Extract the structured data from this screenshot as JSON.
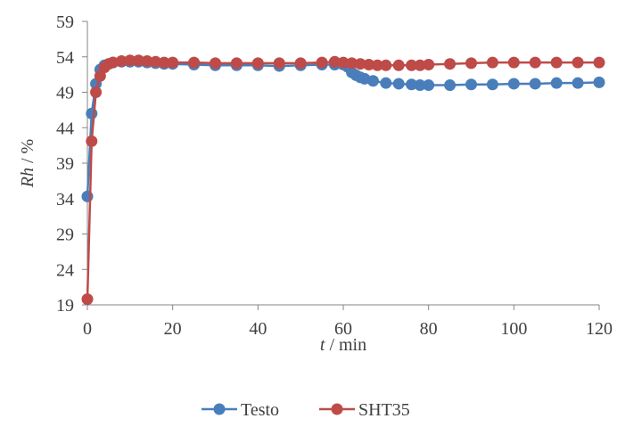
{
  "chart_data": {
    "type": "line",
    "title": "",
    "xlabel": {
      "italic": "t",
      "rest": " / min"
    },
    "ylabel": {
      "italic": "Rh",
      "rest": " / %"
    },
    "xlim": [
      0,
      120
    ],
    "ylim": [
      19,
      59
    ],
    "xticks": [
      "0",
      "20",
      "40",
      "60",
      "80",
      "100",
      "120"
    ],
    "yticks": [
      "19",
      "24",
      "29",
      "34",
      "39",
      "44",
      "49",
      "54",
      "59"
    ],
    "grid": false,
    "legend": "bottom-center",
    "series": [
      {
        "name": "Testo",
        "color": "#4a7ebb",
        "x": [
          0,
          1,
          2,
          3,
          4,
          5,
          6,
          8,
          10,
          12,
          14,
          16,
          18,
          20,
          25,
          30,
          35,
          40,
          45,
          50,
          55,
          58,
          60,
          61,
          62,
          63,
          64,
          65,
          67,
          70,
          73,
          76,
          78,
          80,
          85,
          90,
          95,
          100,
          105,
          110,
          115,
          120
        ],
        "y": [
          34.3,
          46.0,
          50.2,
          52.2,
          52.8,
          53.0,
          53.2,
          53.3,
          53.3,
          53.3,
          53.2,
          53.1,
          53.0,
          53.0,
          52.9,
          52.8,
          52.8,
          52.8,
          52.7,
          52.8,
          52.9,
          52.9,
          52.9,
          52.6,
          51.8,
          51.4,
          51.1,
          50.9,
          50.6,
          50.3,
          50.2,
          50.1,
          50.0,
          50.0,
          50.0,
          50.1,
          50.1,
          50.2,
          50.2,
          50.3,
          50.3,
          50.4
        ]
      },
      {
        "name": "SHT35",
        "color": "#be4b48",
        "x": [
          0,
          1,
          2,
          3,
          4,
          5,
          6,
          8,
          10,
          12,
          14,
          16,
          18,
          20,
          25,
          30,
          35,
          40,
          45,
          50,
          55,
          58,
          60,
          62,
          64,
          66,
          68,
          70,
          73,
          76,
          78,
          80,
          85,
          90,
          95,
          100,
          105,
          110,
          115,
          120
        ],
        "y": [
          19.8,
          42.1,
          49.0,
          51.3,
          52.5,
          53.0,
          53.2,
          53.4,
          53.5,
          53.5,
          53.4,
          53.3,
          53.2,
          53.2,
          53.2,
          53.1,
          53.1,
          53.1,
          53.1,
          53.1,
          53.2,
          53.3,
          53.2,
          53.1,
          53.0,
          52.9,
          52.8,
          52.8,
          52.8,
          52.8,
          52.8,
          52.9,
          53.0,
          53.1,
          53.2,
          53.2,
          53.2,
          53.2,
          53.2,
          53.2
        ]
      }
    ]
  }
}
